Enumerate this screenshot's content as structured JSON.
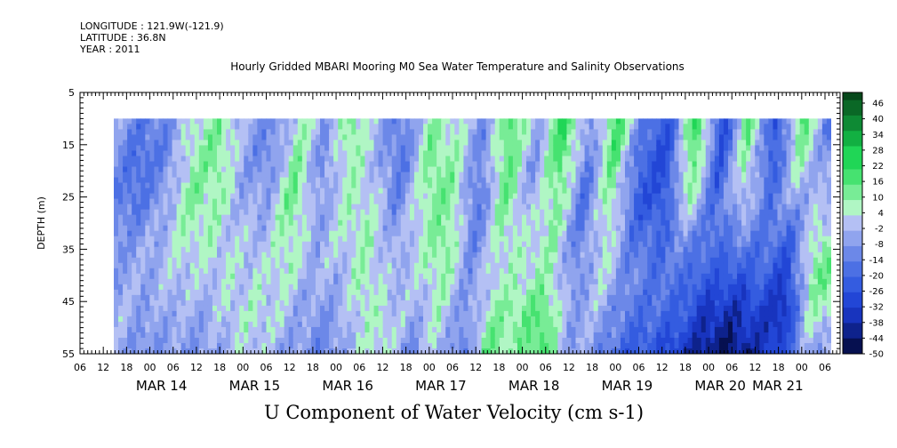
{
  "meta": {
    "longitude": "LONGITUDE : 121.9W(-121.9)",
    "latitude": "LATITUDE : 36.8N",
    "year": "YEAR : 2011"
  },
  "chart_data": {
    "type": "heatmap",
    "title": "Hourly Gridded MBARI Mooring M0 Sea Water Temperature and Salinity Observations",
    "xlabel": "U Component of Water Velocity (cm s-1)",
    "ylabel": "DEPTH (m)",
    "x_range_hours_from": "MAR 13 06",
    "y_ticks": [
      5,
      15,
      25,
      35,
      45,
      55
    ],
    "ylim": [
      55,
      5
    ],
    "data_depth_range": [
      10,
      55
    ],
    "x_hour_tick_labels": [
      "06",
      "12",
      "18",
      "00",
      "06",
      "12",
      "18",
      "00",
      "06",
      "12",
      "18",
      "00",
      "06",
      "12",
      "18",
      "00",
      "06",
      "12",
      "18",
      "00",
      "06",
      "12",
      "18",
      "00",
      "06",
      "12",
      "18",
      "00",
      "06",
      "12",
      "18",
      "00",
      "06"
    ],
    "x_day_labels": [
      "MAR 14",
      "MAR 15",
      "MAR 16",
      "MAR 17",
      "MAR 18",
      "MAR 19",
      "MAR 20",
      "MAR 21"
    ],
    "colorbar": {
      "levels": [
        46,
        40,
        34,
        28,
        22,
        16,
        10,
        4,
        -2,
        -8,
        -14,
        -20,
        -26,
        -32,
        -38,
        -44,
        -50
      ],
      "min": -50,
      "max": 50,
      "colors_negative": [
        "#0a1a5c",
        "#1c3fb8",
        "#4a6fe0",
        "#8ea3ec",
        "#c2cbf3"
      ],
      "colors_positive": [
        "#c8f5c8",
        "#8ef08e",
        "#2fe068",
        "#11a84a",
        "#0b5a23"
      ]
    },
    "field_description_columns": [
      [
        -6,
        -8,
        -10,
        -12,
        -8,
        -4,
        -2
      ],
      [
        -14,
        -18,
        -16,
        -8,
        -4,
        -2,
        -4
      ],
      [
        -10,
        -12,
        -8,
        -4,
        -2,
        -6,
        -10
      ],
      [
        6,
        8,
        10,
        6,
        2,
        -2,
        -6
      ],
      [
        12,
        14,
        10,
        6,
        2,
        -4,
        -8
      ],
      [
        -4,
        -6,
        -2,
        2,
        4,
        2,
        -2
      ],
      [
        -12,
        -10,
        -6,
        -2,
        2,
        6,
        4
      ],
      [
        8,
        12,
        16,
        10,
        6,
        2,
        -4
      ],
      [
        -6,
        -10,
        -8,
        -4,
        -2,
        -6,
        -8
      ],
      [
        14,
        10,
        6,
        4,
        -2,
        -8,
        -10
      ],
      [
        -4,
        -2,
        4,
        8,
        10,
        6,
        2
      ],
      [
        -14,
        -16,
        -12,
        -6,
        -2,
        4,
        8
      ],
      [
        10,
        14,
        10,
        6,
        2,
        -4,
        -10
      ],
      [
        4,
        8,
        12,
        14,
        10,
        6,
        2
      ],
      [
        -8,
        -12,
        -16,
        -12,
        -8,
        -10,
        -14
      ],
      [
        20,
        18,
        14,
        8,
        4,
        10,
        16
      ],
      [
        -6,
        -8,
        -4,
        2,
        6,
        12,
        8
      ],
      [
        24,
        20,
        14,
        10,
        8,
        16,
        20
      ],
      [
        -10,
        -14,
        -18,
        -14,
        -10,
        -6,
        -4
      ],
      [
        22,
        18,
        12,
        8,
        4,
        -2,
        -6
      ],
      [
        -16,
        -20,
        -22,
        -16,
        -10,
        -14,
        -20
      ],
      [
        -24,
        -28,
        -26,
        -20,
        -14,
        -18,
        -24
      ],
      [
        26,
        20,
        10,
        -8,
        -16,
        -20,
        -28
      ],
      [
        -30,
        -26,
        -20,
        -18,
        -22,
        -32,
        -40
      ],
      [
        18,
        12,
        4,
        -10,
        -24,
        -36,
        -46
      ],
      [
        -28,
        -24,
        -16,
        -14,
        -20,
        -30,
        -38
      ],
      [
        20,
        10,
        -4,
        -18,
        -30,
        -38,
        -30
      ],
      [
        -14,
        -8,
        -2,
        8,
        14,
        6,
        -4
      ]
    ]
  }
}
